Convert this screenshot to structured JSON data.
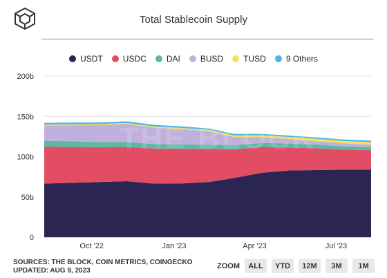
{
  "title": "Total Stablecoin Supply",
  "watermark": "THE BLOCK",
  "legend": [
    {
      "name": "USDT",
      "color": "#2a2553"
    },
    {
      "name": "USDC",
      "color": "#e24d64"
    },
    {
      "name": "DAI",
      "color": "#5ab9a4"
    },
    {
      "name": "BUSD",
      "color": "#c0b1dc"
    },
    {
      "name": "TUSD",
      "color": "#f4e05c"
    },
    {
      "name": "9 Others",
      "color": "#47b6ea"
    }
  ],
  "footer": {
    "sources": "SOURCES: THE BLOCK, COIN METRICS, COINGECKO",
    "updated": "UPDATED: AUG 9, 2023"
  },
  "zoom": {
    "label": "ZOOM",
    "buttons": [
      "ALL",
      "YTD",
      "12M",
      "3M",
      "1M"
    ]
  },
  "chart_data": {
    "type": "area",
    "stacked": true,
    "title": "Total Stablecoin Supply",
    "y_unit_suffix": "b",
    "ylim": [
      0,
      200
    ],
    "yticks": [
      0,
      50,
      100,
      150,
      200
    ],
    "ytick_labels": [
      "0",
      "50b",
      "100b",
      "150b",
      "200b"
    ],
    "xlim": [
      "2022-08-09",
      "2023-08-09"
    ],
    "xticks": [
      "2022-10-01",
      "2023-01-01",
      "2023-04-01",
      "2023-07-01"
    ],
    "xtick_labels": [
      "Oct '22",
      "Jan '23",
      "Apr '23",
      "Jul '23"
    ],
    "grid": "horizontal",
    "legend_position": "top",
    "x": [
      "2022-08-09",
      "2022-09-09",
      "2022-10-09",
      "2022-11-09",
      "2022-12-09",
      "2023-01-09",
      "2023-02-09",
      "2023-03-09",
      "2023-04-09",
      "2023-05-09",
      "2023-06-09",
      "2023-07-09",
      "2023-08-09"
    ],
    "series": [
      {
        "name": "USDT",
        "values": [
          66.5,
          67.5,
          68.5,
          69.5,
          66.5,
          66.8,
          68.5,
          73.5,
          80.0,
          82.8,
          83.3,
          83.8,
          84.0
        ]
      },
      {
        "name": "USDC",
        "values": [
          46.0,
          44.5,
          43.2,
          42.6,
          43.5,
          43.0,
          41.0,
          35.5,
          32.0,
          28.5,
          27.0,
          25.0,
          24.0
        ]
      },
      {
        "name": "DAI",
        "values": [
          7.2,
          7.0,
          6.4,
          6.0,
          5.6,
          5.4,
          5.2,
          5.3,
          5.0,
          5.1,
          4.6,
          4.2,
          4.0
        ]
      },
      {
        "name": "BUSD",
        "values": [
          19.0,
          20.0,
          21.0,
          22.5,
          20.5,
          19.0,
          17.0,
          10.0,
          7.0,
          5.5,
          4.2,
          3.5,
          3.0
        ]
      },
      {
        "name": "TUSD",
        "values": [
          1.2,
          1.2,
          1.3,
          1.3,
          1.4,
          1.4,
          1.5,
          2.0,
          2.5,
          2.6,
          3.0,
          3.0,
          3.0
        ]
      },
      {
        "name": "9 Others",
        "values": [
          2.0,
          2.0,
          2.0,
          2.0,
          2.0,
          1.9,
          1.8,
          1.8,
          1.7,
          1.7,
          1.7,
          1.8,
          1.8
        ]
      }
    ]
  }
}
